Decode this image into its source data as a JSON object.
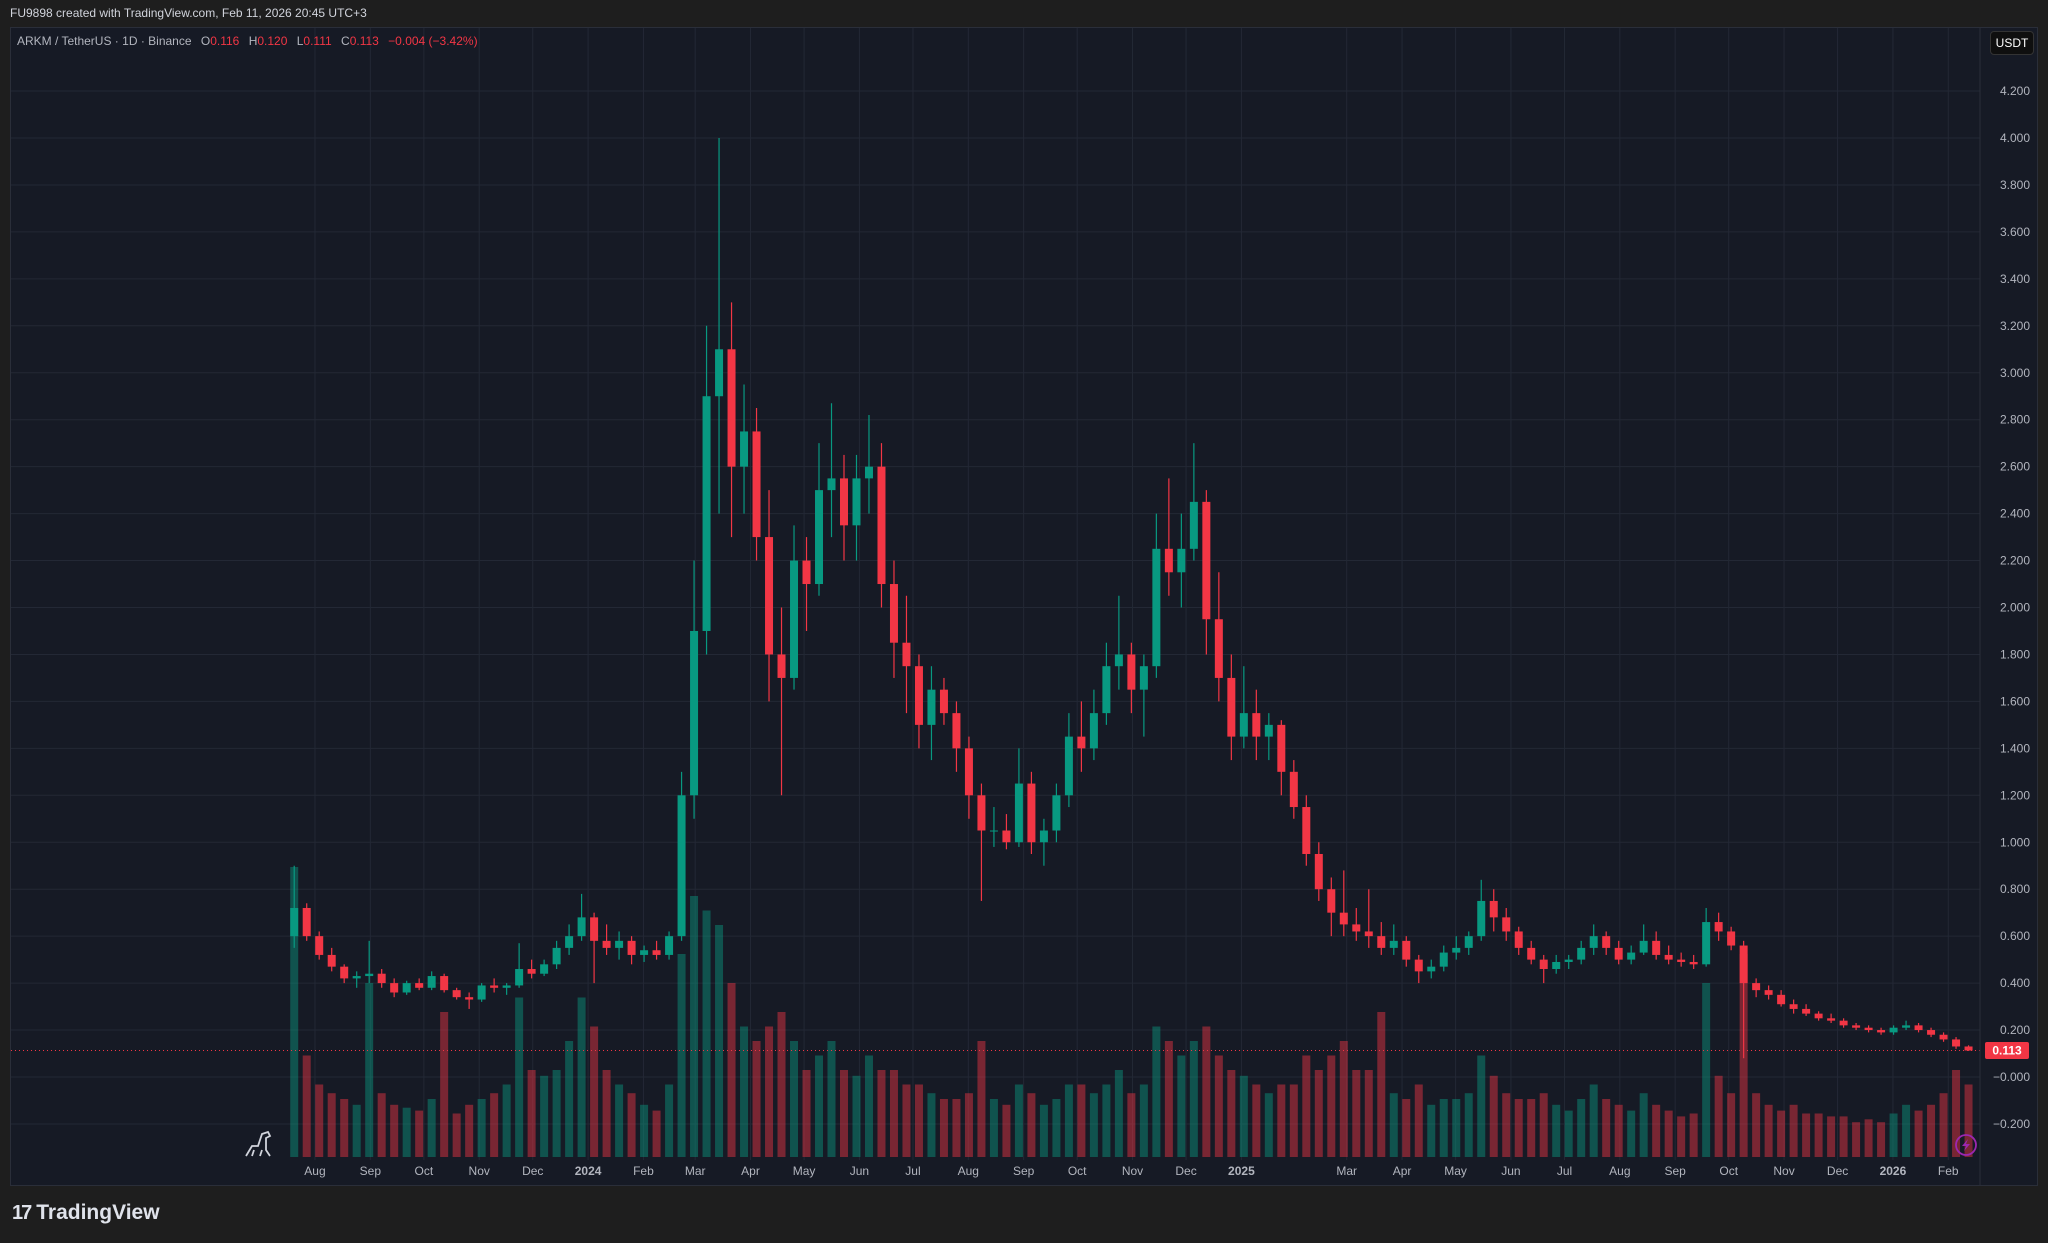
{
  "header": {
    "credit": "FU9898 created with TradingView.com, Feb 11, 2026 20:45 UTC+3"
  },
  "legend": {
    "symbol": "ARKM / TetherUS · 1D · Binance",
    "open_label": "O",
    "open": "0.116",
    "high_label": "H",
    "high": "0.120",
    "low_label": "L",
    "low": "0.111",
    "close_label": "C",
    "close": "0.113",
    "change": "−0.004 (−3.42%)"
  },
  "currency_button": "USDT",
  "footer": {
    "brand": "TradingView",
    "logo_mark": "17"
  },
  "icons": {
    "bottom_left": "dinosaur-icon",
    "bottom_right": "lightning-icon",
    "logo": "tradingview-logo-icon"
  },
  "colors": {
    "up": "#089981",
    "down": "#f23645",
    "last_price": "#f23645",
    "background": "#161a25",
    "grid": "#232835"
  },
  "chart_data": {
    "type": "candlestick",
    "title": "ARKM / TetherUS · 1D · Binance",
    "xlabel": "",
    "ylabel": "",
    "ylim": [
      -0.2,
      4.2
    ],
    "y_ticks": [
      "4.200",
      "4.000",
      "3.800",
      "3.600",
      "3.400",
      "3.200",
      "3.000",
      "2.800",
      "2.600",
      "2.400",
      "2.200",
      "2.000",
      "1.800",
      "1.600",
      "1.400",
      "1.200",
      "1.000",
      "0.800",
      "0.600",
      "0.400",
      "0.200",
      "−0.000",
      "−0.200"
    ],
    "x_ticks": [
      {
        "label": "Aug",
        "date": "2023-08-01"
      },
      {
        "label": "Sep",
        "date": "2023-09-01"
      },
      {
        "label": "Oct",
        "date": "2023-10-01"
      },
      {
        "label": "Nov",
        "date": "2023-11-01"
      },
      {
        "label": "Dec",
        "date": "2023-12-01"
      },
      {
        "label": "2024",
        "date": "2024-01-01"
      },
      {
        "label": "Feb",
        "date": "2024-02-01"
      },
      {
        "label": "Mar",
        "date": "2024-03-01"
      },
      {
        "label": "Apr",
        "date": "2024-04-01"
      },
      {
        "label": "May",
        "date": "2024-05-01"
      },
      {
        "label": "Jun",
        "date": "2024-06-01"
      },
      {
        "label": "Jul",
        "date": "2024-07-01"
      },
      {
        "label": "Aug",
        "date": "2024-08-01"
      },
      {
        "label": "Sep",
        "date": "2024-09-01"
      },
      {
        "label": "Oct",
        "date": "2024-10-01"
      },
      {
        "label": "Nov",
        "date": "2024-11-01"
      },
      {
        "label": "Dec",
        "date": "2024-12-01"
      },
      {
        "label": "2025",
        "date": "2025-01-01"
      },
      {
        "label": "Mar",
        "date": "2025-03-01"
      },
      {
        "label": "Apr",
        "date": "2025-04-01"
      },
      {
        "label": "May",
        "date": "2025-05-01"
      },
      {
        "label": "Jun",
        "date": "2025-06-01"
      },
      {
        "label": "Jul",
        "date": "2025-07-01"
      },
      {
        "label": "Aug",
        "date": "2025-08-01"
      },
      {
        "label": "Sep",
        "date": "2025-09-01"
      },
      {
        "label": "Oct",
        "date": "2025-10-01"
      },
      {
        "label": "Nov",
        "date": "2025-11-01"
      },
      {
        "label": "Dec",
        "date": "2025-12-01"
      },
      {
        "label": "2026",
        "date": "2026-01-01"
      },
      {
        "label": "Feb",
        "date": "2026-02-01"
      }
    ],
    "last_price": "0.113",
    "volume_units": "relative",
    "columns": [
      "date",
      "open",
      "high",
      "low",
      "close",
      "volume"
    ],
    "candles": [
      [
        "2023-07-17",
        0.6,
        0.9,
        0.55,
        0.72,
        100
      ],
      [
        "2023-07-24",
        0.72,
        0.74,
        0.58,
        0.6,
        35
      ],
      [
        "2023-07-31",
        0.6,
        0.62,
        0.5,
        0.52,
        25
      ],
      [
        "2023-08-07",
        0.52,
        0.55,
        0.45,
        0.47,
        22
      ],
      [
        "2023-08-14",
        0.47,
        0.48,
        0.4,
        0.42,
        20
      ],
      [
        "2023-08-21",
        0.42,
        0.45,
        0.38,
        0.43,
        18
      ],
      [
        "2023-08-28",
        0.43,
        0.58,
        0.4,
        0.44,
        60
      ],
      [
        "2023-09-04",
        0.44,
        0.46,
        0.38,
        0.4,
        22
      ],
      [
        "2023-09-11",
        0.4,
        0.42,
        0.34,
        0.36,
        18
      ],
      [
        "2023-09-18",
        0.36,
        0.41,
        0.35,
        0.4,
        17
      ],
      [
        "2023-09-25",
        0.4,
        0.42,
        0.37,
        0.38,
        16
      ],
      [
        "2023-10-02",
        0.38,
        0.45,
        0.37,
        0.43,
        20
      ],
      [
        "2023-10-09",
        0.43,
        0.44,
        0.36,
        0.37,
        50
      ],
      [
        "2023-10-16",
        0.37,
        0.38,
        0.33,
        0.34,
        15
      ],
      [
        "2023-10-23",
        0.34,
        0.36,
        0.29,
        0.33,
        18
      ],
      [
        "2023-10-30",
        0.33,
        0.4,
        0.32,
        0.39,
        20
      ],
      [
        "2023-11-06",
        0.39,
        0.42,
        0.36,
        0.38,
        22
      ],
      [
        "2023-11-13",
        0.38,
        0.4,
        0.35,
        0.39,
        25
      ],
      [
        "2023-11-20",
        0.39,
        0.57,
        0.38,
        0.46,
        55
      ],
      [
        "2023-11-27",
        0.46,
        0.5,
        0.42,
        0.44,
        30
      ],
      [
        "2023-12-04",
        0.44,
        0.5,
        0.43,
        0.48,
        28
      ],
      [
        "2023-12-11",
        0.48,
        0.58,
        0.46,
        0.55,
        30
      ],
      [
        "2023-12-18",
        0.55,
        0.65,
        0.52,
        0.6,
        40
      ],
      [
        "2023-12-25",
        0.6,
        0.78,
        0.58,
        0.68,
        55
      ],
      [
        "2024-01-01",
        0.68,
        0.7,
        0.4,
        0.58,
        45
      ],
      [
        "2024-01-08",
        0.58,
        0.65,
        0.52,
        0.55,
        30
      ],
      [
        "2024-01-15",
        0.55,
        0.62,
        0.5,
        0.58,
        25
      ],
      [
        "2024-01-22",
        0.58,
        0.6,
        0.48,
        0.52,
        22
      ],
      [
        "2024-01-29",
        0.52,
        0.56,
        0.49,
        0.54,
        18
      ],
      [
        "2024-02-05",
        0.54,
        0.58,
        0.5,
        0.52,
        16
      ],
      [
        "2024-02-12",
        0.52,
        0.62,
        0.5,
        0.6,
        25
      ],
      [
        "2024-02-19",
        0.6,
        1.3,
        0.58,
        1.2,
        70
      ],
      [
        "2024-02-26",
        1.2,
        2.2,
        1.1,
        1.9,
        90
      ],
      [
        "2024-03-04",
        1.9,
        3.2,
        1.8,
        2.9,
        85
      ],
      [
        "2024-03-11",
        2.9,
        4.0,
        2.4,
        3.1,
        80
      ],
      [
        "2024-03-18",
        3.1,
        3.3,
        2.3,
        2.6,
        60
      ],
      [
        "2024-03-25",
        2.6,
        2.95,
        2.4,
        2.75,
        45
      ],
      [
        "2024-04-01",
        2.75,
        2.85,
        2.2,
        2.3,
        40
      ],
      [
        "2024-04-08",
        2.3,
        2.5,
        1.6,
        1.8,
        45
      ],
      [
        "2024-04-15",
        1.8,
        2.0,
        1.2,
        1.7,
        50
      ],
      [
        "2024-04-22",
        1.7,
        2.35,
        1.65,
        2.2,
        40
      ],
      [
        "2024-04-29",
        2.2,
        2.3,
        1.9,
        2.1,
        30
      ],
      [
        "2024-05-06",
        2.1,
        2.7,
        2.05,
        2.5,
        35
      ],
      [
        "2024-05-13",
        2.5,
        2.87,
        2.3,
        2.55,
        40
      ],
      [
        "2024-05-20",
        2.55,
        2.65,
        2.2,
        2.35,
        30
      ],
      [
        "2024-05-27",
        2.35,
        2.65,
        2.2,
        2.55,
        28
      ],
      [
        "2024-06-03",
        2.55,
        2.82,
        2.4,
        2.6,
        35
      ],
      [
        "2024-06-10",
        2.6,
        2.7,
        2.0,
        2.1,
        30
      ],
      [
        "2024-06-17",
        2.1,
        2.2,
        1.7,
        1.85,
        30
      ],
      [
        "2024-06-24",
        1.85,
        2.05,
        1.55,
        1.75,
        25
      ],
      [
        "2024-07-01",
        1.75,
        1.8,
        1.4,
        1.5,
        25
      ],
      [
        "2024-07-08",
        1.5,
        1.75,
        1.35,
        1.65,
        22
      ],
      [
        "2024-07-15",
        1.65,
        1.7,
        1.5,
        1.55,
        20
      ],
      [
        "2024-07-22",
        1.55,
        1.6,
        1.3,
        1.4,
        20
      ],
      [
        "2024-07-29",
        1.4,
        1.45,
        1.1,
        1.2,
        22
      ],
      [
        "2024-08-05",
        1.2,
        1.25,
        0.75,
        1.05,
        40
      ],
      [
        "2024-08-12",
        1.05,
        1.15,
        0.98,
        1.05,
        20
      ],
      [
        "2024-08-19",
        1.05,
        1.12,
        0.97,
        1.0,
        18
      ],
      [
        "2024-08-26",
        1.0,
        1.4,
        0.98,
        1.25,
        25
      ],
      [
        "2024-09-02",
        1.25,
        1.3,
        0.95,
        1.0,
        22
      ],
      [
        "2024-09-09",
        1.0,
        1.1,
        0.9,
        1.05,
        18
      ],
      [
        "2024-09-16",
        1.05,
        1.25,
        1.0,
        1.2,
        20
      ],
      [
        "2024-09-23",
        1.2,
        1.55,
        1.15,
        1.45,
        25
      ],
      [
        "2024-09-30",
        1.45,
        1.6,
        1.3,
        1.4,
        25
      ],
      [
        "2024-10-07",
        1.4,
        1.65,
        1.35,
        1.55,
        22
      ],
      [
        "2024-10-14",
        1.55,
        1.85,
        1.5,
        1.75,
        25
      ],
      [
        "2024-10-21",
        1.75,
        2.05,
        1.65,
        1.8,
        30
      ],
      [
        "2024-10-28",
        1.8,
        1.85,
        1.55,
        1.65,
        22
      ],
      [
        "2024-11-04",
        1.65,
        1.8,
        1.45,
        1.75,
        25
      ],
      [
        "2024-11-11",
        1.75,
        2.4,
        1.7,
        2.25,
        45
      ],
      [
        "2024-11-18",
        2.25,
        2.55,
        2.05,
        2.15,
        40
      ],
      [
        "2024-11-25",
        2.15,
        2.4,
        2.0,
        2.25,
        35
      ],
      [
        "2024-12-02",
        2.25,
        2.7,
        2.2,
        2.45,
        40
      ],
      [
        "2024-12-09",
        2.45,
        2.5,
        1.8,
        1.95,
        45
      ],
      [
        "2024-12-16",
        1.95,
        2.15,
        1.6,
        1.7,
        35
      ],
      [
        "2024-12-23",
        1.7,
        1.8,
        1.35,
        1.45,
        30
      ],
      [
        "2024-12-30",
        1.45,
        1.75,
        1.4,
        1.55,
        28
      ],
      [
        "2025-01-06",
        1.55,
        1.65,
        1.35,
        1.45,
        25
      ],
      [
        "2025-01-13",
        1.45,
        1.55,
        1.35,
        1.5,
        22
      ],
      [
        "2025-01-20",
        1.5,
        1.52,
        1.2,
        1.3,
        25
      ],
      [
        "2025-01-27",
        1.3,
        1.35,
        1.1,
        1.15,
        25
      ],
      [
        "2025-02-03",
        1.15,
        1.2,
        0.9,
        0.95,
        35
      ],
      [
        "2025-02-10",
        0.95,
        1.0,
        0.75,
        0.8,
        30
      ],
      [
        "2025-02-17",
        0.8,
        0.85,
        0.6,
        0.7,
        35
      ],
      [
        "2025-02-24",
        0.7,
        0.88,
        0.6,
        0.65,
        40
      ],
      [
        "2025-03-03",
        0.65,
        0.72,
        0.58,
        0.62,
        30
      ],
      [
        "2025-03-10",
        0.62,
        0.8,
        0.55,
        0.6,
        30
      ],
      [
        "2025-03-17",
        0.6,
        0.66,
        0.52,
        0.55,
        50
      ],
      [
        "2025-03-24",
        0.55,
        0.65,
        0.52,
        0.58,
        22
      ],
      [
        "2025-03-31",
        0.58,
        0.6,
        0.47,
        0.5,
        20
      ],
      [
        "2025-04-07",
        0.5,
        0.52,
        0.4,
        0.45,
        25
      ],
      [
        "2025-04-14",
        0.45,
        0.5,
        0.42,
        0.47,
        18
      ],
      [
        "2025-04-21",
        0.47,
        0.56,
        0.45,
        0.53,
        20
      ],
      [
        "2025-04-28",
        0.53,
        0.6,
        0.5,
        0.55,
        20
      ],
      [
        "2025-05-05",
        0.55,
        0.62,
        0.52,
        0.6,
        22
      ],
      [
        "2025-05-12",
        0.6,
        0.84,
        0.58,
        0.75,
        35
      ],
      [
        "2025-05-19",
        0.75,
        0.8,
        0.62,
        0.68,
        28
      ],
      [
        "2025-05-26",
        0.68,
        0.72,
        0.58,
        0.62,
        22
      ],
      [
        "2025-06-02",
        0.62,
        0.64,
        0.52,
        0.55,
        20
      ],
      [
        "2025-06-09",
        0.55,
        0.58,
        0.48,
        0.5,
        20
      ],
      [
        "2025-06-16",
        0.5,
        0.52,
        0.4,
        0.46,
        22
      ],
      [
        "2025-06-23",
        0.46,
        0.52,
        0.44,
        0.49,
        18
      ],
      [
        "2025-06-30",
        0.49,
        0.52,
        0.46,
        0.5,
        16
      ],
      [
        "2025-07-07",
        0.5,
        0.58,
        0.48,
        0.55,
        20
      ],
      [
        "2025-07-14",
        0.55,
        0.65,
        0.52,
        0.6,
        25
      ],
      [
        "2025-07-21",
        0.6,
        0.62,
        0.52,
        0.55,
        20
      ],
      [
        "2025-07-28",
        0.55,
        0.58,
        0.48,
        0.5,
        18
      ],
      [
        "2025-08-04",
        0.5,
        0.56,
        0.48,
        0.53,
        16
      ],
      [
        "2025-08-11",
        0.53,
        0.65,
        0.52,
        0.58,
        22
      ],
      [
        "2025-08-18",
        0.58,
        0.62,
        0.5,
        0.52,
        18
      ],
      [
        "2025-08-25",
        0.52,
        0.56,
        0.48,
        0.5,
        16
      ],
      [
        "2025-09-01",
        0.5,
        0.53,
        0.47,
        0.49,
        14
      ],
      [
        "2025-09-08",
        0.49,
        0.52,
        0.46,
        0.48,
        15
      ],
      [
        "2025-09-15",
        0.48,
        0.72,
        0.47,
        0.66,
        60
      ],
      [
        "2025-09-22",
        0.66,
        0.7,
        0.58,
        0.62,
        28
      ],
      [
        "2025-09-29",
        0.62,
        0.64,
        0.54,
        0.56,
        22
      ],
      [
        "2025-10-06",
        0.56,
        0.58,
        0.08,
        0.4,
        70
      ],
      [
        "2025-10-13",
        0.4,
        0.42,
        0.34,
        0.37,
        22
      ],
      [
        "2025-10-20",
        0.37,
        0.39,
        0.33,
        0.35,
        18
      ],
      [
        "2025-10-27",
        0.35,
        0.37,
        0.3,
        0.31,
        16
      ],
      [
        "2025-11-03",
        0.31,
        0.33,
        0.27,
        0.29,
        18
      ],
      [
        "2025-11-10",
        0.29,
        0.31,
        0.26,
        0.27,
        15
      ],
      [
        "2025-11-17",
        0.27,
        0.28,
        0.24,
        0.25,
        15
      ],
      [
        "2025-11-24",
        0.25,
        0.27,
        0.23,
        0.24,
        14
      ],
      [
        "2025-12-01",
        0.24,
        0.25,
        0.21,
        0.22,
        14
      ],
      [
        "2025-12-08",
        0.22,
        0.23,
        0.2,
        0.21,
        12
      ],
      [
        "2025-12-15",
        0.21,
        0.22,
        0.19,
        0.2,
        13
      ],
      [
        "2025-12-22",
        0.2,
        0.21,
        0.18,
        0.19,
        12
      ],
      [
        "2025-12-29",
        0.19,
        0.22,
        0.18,
        0.21,
        15
      ],
      [
        "2026-01-05",
        0.21,
        0.24,
        0.2,
        0.22,
        18
      ],
      [
        "2026-01-12",
        0.22,
        0.23,
        0.19,
        0.2,
        16
      ],
      [
        "2026-01-19",
        0.2,
        0.21,
        0.17,
        0.18,
        18
      ],
      [
        "2026-01-26",
        0.18,
        0.19,
        0.15,
        0.16,
        22
      ],
      [
        "2026-02-02",
        0.16,
        0.17,
        0.12,
        0.13,
        30
      ],
      [
        "2026-02-09",
        0.13,
        0.135,
        0.111,
        0.113,
        25
      ]
    ]
  }
}
